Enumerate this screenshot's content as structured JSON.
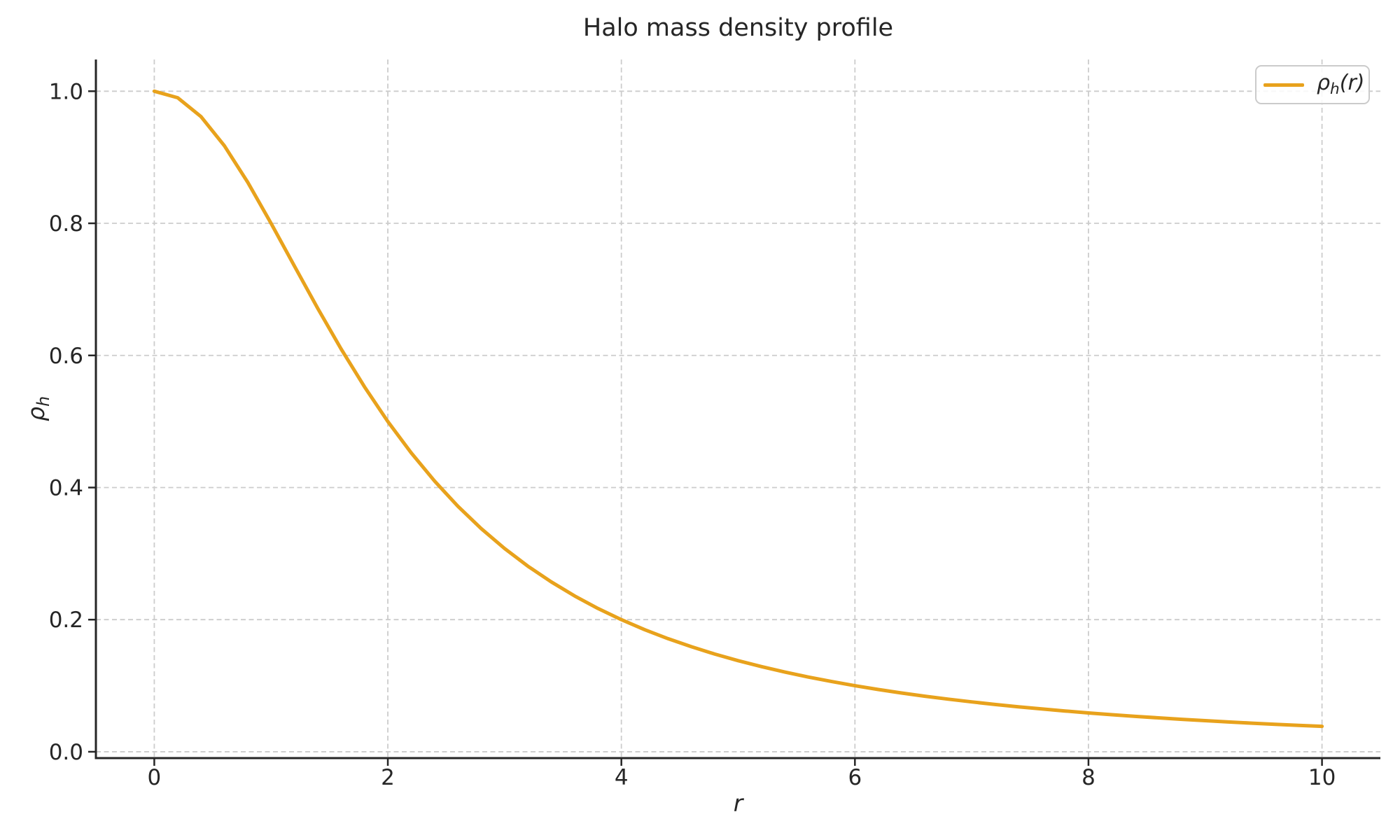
{
  "figure": {
    "title": "Halo mass density profile",
    "xlabel": "r",
    "ylabel": {
      "symbol": "ρ",
      "subscript": "h"
    },
    "legend": {
      "entry": {
        "symbol": "ρ",
        "subscript": "h",
        "argument": "(r)"
      }
    },
    "colors": {
      "line": "#E8A21C",
      "grid": "#CCCCCC",
      "axis": "#262626",
      "text": "#262626",
      "legend_border": "#CBCBCB",
      "background": "#FFFFFF"
    }
  },
  "chart_data": {
    "type": "line",
    "title": "Halo mass density profile",
    "xlabel": "r",
    "ylabel": "rho_h",
    "xlim": [
      -0.5,
      10.5
    ],
    "ylim": [
      -0.0096,
      1.048
    ],
    "xticks": [
      0,
      2,
      4,
      6,
      8,
      10
    ],
    "xtick_labels": [
      "0",
      "2",
      "4",
      "6",
      "8",
      "10"
    ],
    "yticks": [
      0.0,
      0.2,
      0.4,
      0.6,
      0.8,
      1.0
    ],
    "ytick_labels": [
      "0.0",
      "0.2",
      "0.4",
      "0.6",
      "0.8",
      "1.0"
    ],
    "grid": {
      "visible": true,
      "linestyle": "dashed"
    },
    "legend_position": "upper right",
    "series": [
      {
        "name": "rho_h(r)",
        "color": "#E8A21C",
        "x": [
          0,
          0.2,
          0.4,
          0.6,
          0.8,
          1.0,
          1.2,
          1.4,
          1.6,
          1.8,
          2.0,
          2.2,
          2.4,
          2.6,
          2.8,
          3.0,
          3.2,
          3.4,
          3.6,
          3.8,
          4.0,
          4.2,
          4.4,
          4.6,
          4.8,
          5.0,
          5.2,
          5.4,
          5.6,
          5.8,
          6.0,
          6.2,
          6.4,
          6.6,
          6.8,
          7.0,
          7.2,
          7.4,
          7.6,
          7.8,
          8.0,
          8.2,
          8.4,
          8.6,
          8.8,
          9.0,
          9.2,
          9.4,
          9.6,
          9.8,
          10.0
        ],
        "y": [
          1.0,
          0.9901,
          0.9615,
          0.9174,
          0.8621,
          0.8,
          0.7353,
          0.6711,
          0.6098,
          0.5525,
          0.5,
          0.4525,
          0.4098,
          0.3717,
          0.3378,
          0.3077,
          0.2809,
          0.2571,
          0.2358,
          0.2169,
          0.2,
          0.1848,
          0.1712,
          0.159,
          0.1479,
          0.1379,
          0.1289,
          0.1206,
          0.1131,
          0.1063,
          0.1,
          0.0943,
          0.089,
          0.0841,
          0.0796,
          0.0755,
          0.0716,
          0.0681,
          0.0648,
          0.0617,
          0.0588,
          0.0561,
          0.0536,
          0.0513,
          0.0491,
          0.0471,
          0.0451,
          0.0433,
          0.0416,
          0.04,
          0.0385
        ]
      }
    ]
  }
}
